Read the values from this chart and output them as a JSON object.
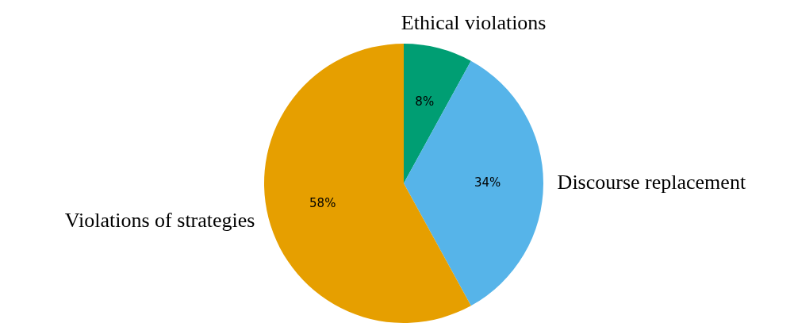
{
  "chart_data": {
    "type": "pie",
    "categories": [
      "Ethical violations",
      "Discourse replacement",
      "Violations of strategies"
    ],
    "values": [
      8,
      34,
      58
    ],
    "colors": [
      "#009e73",
      "#56b4e9",
      "#e69f00"
    ],
    "value_labels": [
      "8%",
      "34%",
      "58%"
    ]
  }
}
